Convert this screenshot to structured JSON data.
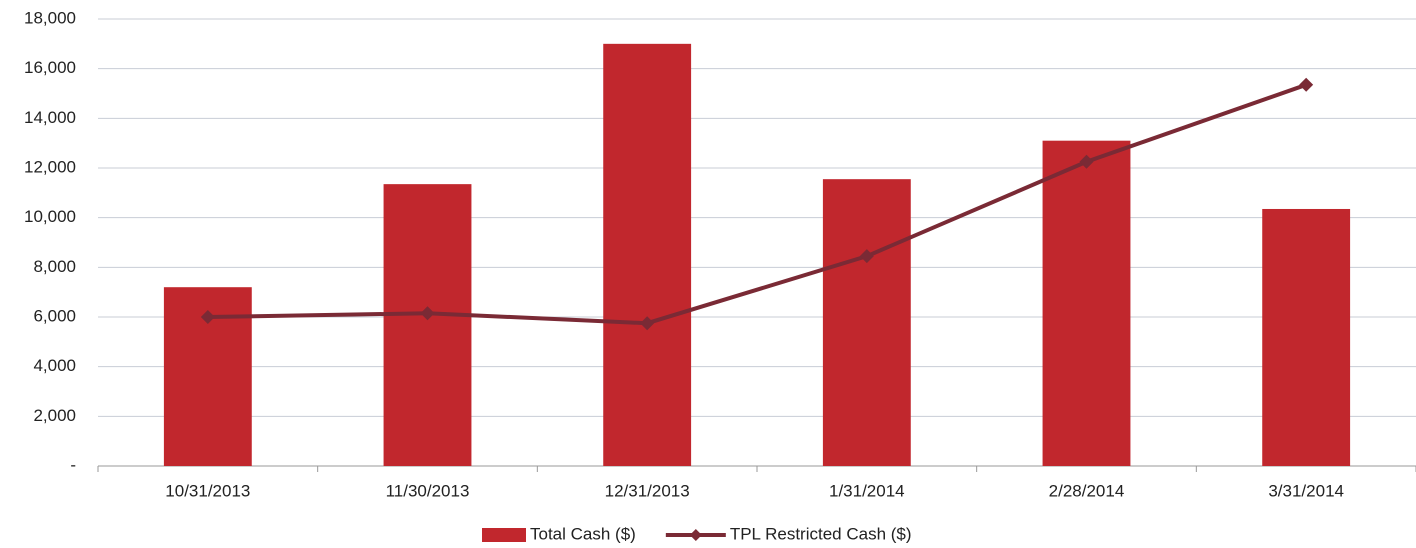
{
  "chart_data": {
    "type": "bar",
    "categories": [
      "10/31/2013",
      "11/30/2013",
      "12/31/2013",
      "1/31/2014",
      "2/28/2014",
      "3/31/2014"
    ],
    "series": [
      {
        "name": "Total Cash ($)",
        "type": "bar",
        "color": "#c1272d",
        "values": [
          7200,
          11350,
          17000,
          11550,
          13100,
          10350
        ]
      },
      {
        "name": "TPL Restricted Cash ($)",
        "type": "line",
        "color": "#7a2a35",
        "values": [
          6000,
          6150,
          5750,
          8450,
          12250,
          15350
        ]
      }
    ],
    "ylim": [
      0,
      18000
    ],
    "yticks": [
      {
        "value": 0,
        "label": "-"
      },
      {
        "value": 2000,
        "label": "2,000"
      },
      {
        "value": 4000,
        "label": "4,000"
      },
      {
        "value": 6000,
        "label": "6,000"
      },
      {
        "value": 8000,
        "label": "8,000"
      },
      {
        "value": 10000,
        "label": "10,000"
      },
      {
        "value": 12000,
        "label": "12,000"
      },
      {
        "value": 14000,
        "label": "14,000"
      },
      {
        "value": 16000,
        "label": "16,000"
      },
      {
        "value": 18000,
        "label": "18,000"
      }
    ],
    "grid": true,
    "legend": "bottom"
  }
}
